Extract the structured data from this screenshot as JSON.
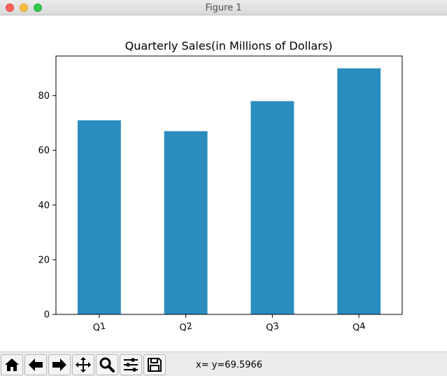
{
  "window": {
    "title": "Figure 1"
  },
  "chart_data": {
    "type": "bar",
    "title": "Quarterly Sales(in Millions of Dollars)",
    "categories": [
      "Q1",
      "Q2",
      "Q3",
      "Q4"
    ],
    "values": [
      71,
      67,
      78,
      90
    ],
    "ylim": [
      0,
      94.5
    ],
    "yticks": [
      0,
      20,
      40,
      60,
      80
    ],
    "bar_color": "#2b8cbe",
    "grid": false,
    "xlabel": "",
    "ylabel": ""
  },
  "toolbar": {
    "buttons": [
      {
        "name": "home",
        "icon": "home-icon"
      },
      {
        "name": "back",
        "icon": "arrow-left-icon"
      },
      {
        "name": "forward",
        "icon": "arrow-right-icon"
      },
      {
        "name": "pan",
        "icon": "move-icon"
      },
      {
        "name": "zoom",
        "icon": "magnifier-icon"
      },
      {
        "name": "configure",
        "icon": "sliders-icon"
      },
      {
        "name": "save",
        "icon": "floppy-disk-icon"
      }
    ],
    "coords": "x= y=69.5966"
  }
}
